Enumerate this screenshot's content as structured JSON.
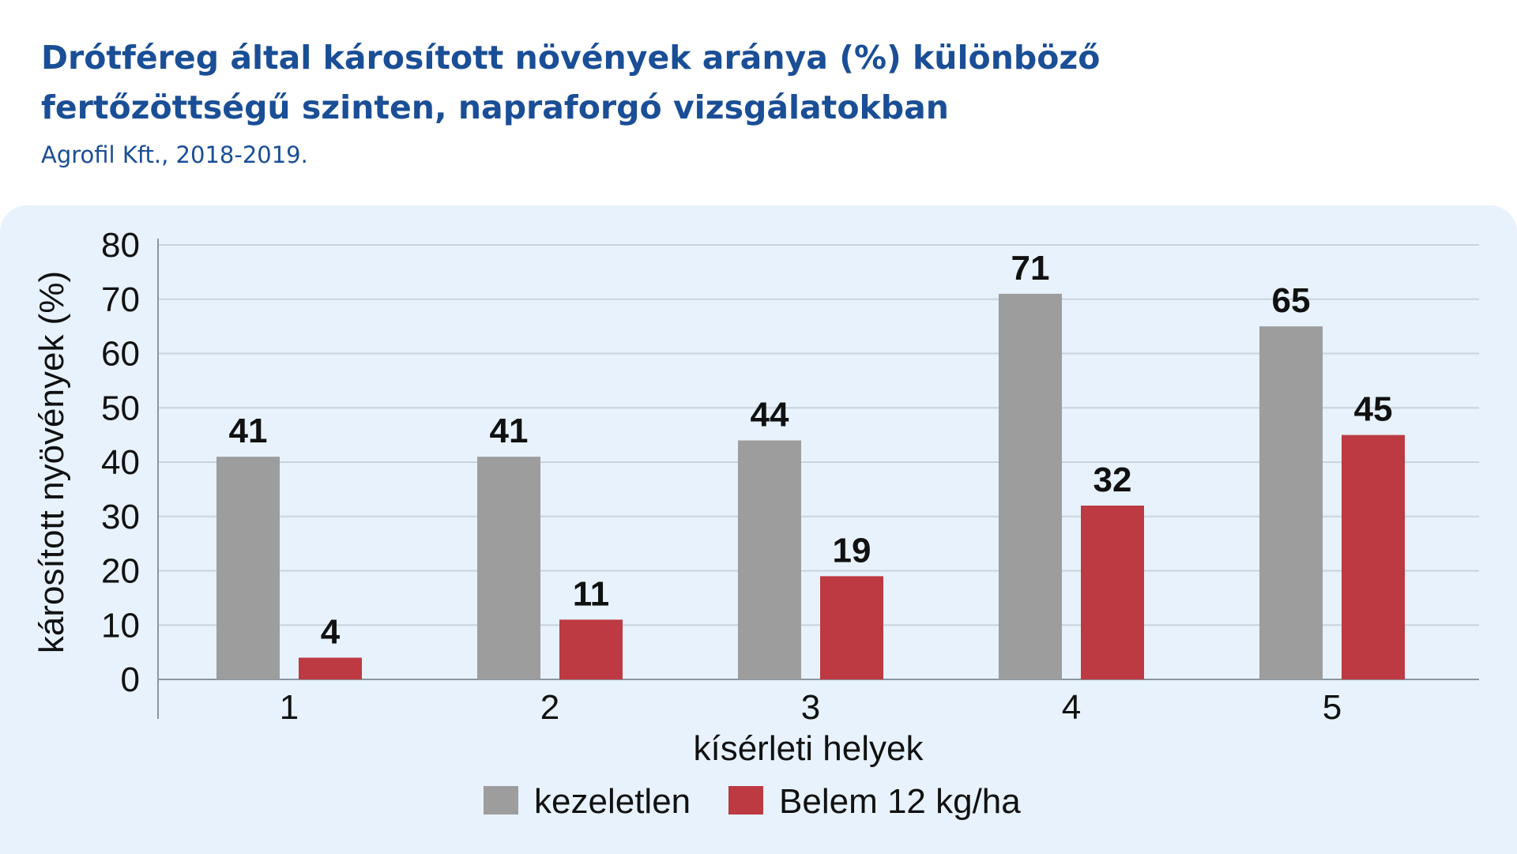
{
  "header": {
    "title": "Drótféreg által károsított növények aránya (%) különböző fertőzöttségű szinten, napraforgó vizsgálatokban",
    "subtitle": "Agrofil Kft., 2018-2019."
  },
  "colors": {
    "title": "#1a4e96",
    "panel": "#e7f2fc",
    "series_untreated": "#9d9d9d",
    "series_belem": "#bd3a42",
    "grid": "#c9d3dc"
  },
  "chart_data": {
    "type": "bar",
    "categories": [
      "1",
      "2",
      "3",
      "4",
      "5"
    ],
    "series": [
      {
        "name": "kezeletlen",
        "values": [
          41,
          41,
          44,
          71,
          65
        ],
        "color": "#9d9d9d"
      },
      {
        "name": "Belem 12 kg/ha",
        "values": [
          4,
          11,
          19,
          32,
          45
        ],
        "color": "#bd3a42"
      }
    ],
    "xlabel": "kísérleti helyek",
    "ylabel": "károsított nyövények (%)",
    "ylim": [
      0,
      80
    ],
    "yticks": [
      0,
      10,
      20,
      30,
      40,
      50,
      60,
      70,
      80
    ],
    "grid": true,
    "legend": "bottom-center",
    "data_labels": true
  }
}
